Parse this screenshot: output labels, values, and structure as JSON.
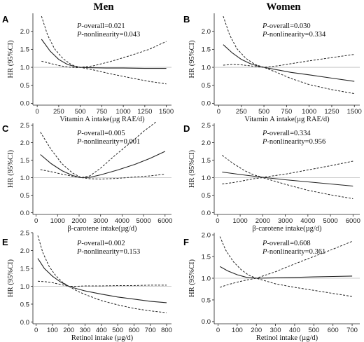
{
  "column_titles": {
    "men": "Men",
    "women": "Women"
  },
  "chart_data": [
    {
      "panel": "A",
      "type": "line",
      "xlabel": "Vitamin A intake(µg RAE/d)",
      "ylabel": "HR (95%CI)",
      "xlim": [
        -50,
        1560
      ],
      "ylim": [
        -0.05,
        2.5
      ],
      "xticks": [
        "0",
        "250",
        "500",
        "750",
        "1000",
        "1250",
        "1500"
      ],
      "xtick_values": [
        0,
        250,
        500,
        750,
        1000,
        1250,
        1500
      ],
      "yticks": [
        "0.0",
        "0.5",
        "1.0",
        "1.5",
        "2.0"
      ],
      "ytick_values": [
        0,
        0.5,
        1.0,
        1.5,
        2.0
      ],
      "annotations": [
        "P-overall=0.021",
        "P-nonlinearity=0.043"
      ],
      "reference_line": 1.0,
      "series": [
        {
          "style": "solid",
          "x": [
            50,
            150,
            250,
            350,
            450,
            500,
            600,
            800,
            1000,
            1250,
            1500
          ],
          "y": [
            1.78,
            1.45,
            1.22,
            1.08,
            1.01,
            1.0,
            0.99,
            0.98,
            0.98,
            0.97,
            0.97
          ]
        },
        {
          "style": "dashed",
          "x": [
            50,
            120,
            200,
            300,
            400,
            500,
            650,
            850,
            1100,
            1300,
            1500
          ],
          "y": [
            2.42,
            1.9,
            1.52,
            1.24,
            1.07,
            1.0,
            1.04,
            1.16,
            1.34,
            1.5,
            1.72
          ]
        },
        {
          "style": "dashed",
          "x": [
            50,
            150,
            250,
            350,
            450,
            500,
            650,
            850,
            1100,
            1300,
            1500
          ],
          "y": [
            1.17,
            1.11,
            1.05,
            1.01,
            0.99,
            1.0,
            0.93,
            0.82,
            0.7,
            0.61,
            0.54
          ]
        }
      ]
    },
    {
      "panel": "B",
      "type": "line",
      "xlabel": "Vitamin A intake(µg RAE/d)",
      "ylabel": "HR (95%CI)",
      "xlim": [
        -50,
        1560
      ],
      "ylim": [
        -0.05,
        2.5
      ],
      "xticks": [
        "0",
        "250",
        "500",
        "750",
        "1000",
        "1250",
        "1500"
      ],
      "xtick_values": [
        0,
        250,
        500,
        750,
        1000,
        1250,
        1500
      ],
      "yticks": [
        "0.0",
        "0.5",
        "1.0",
        "1.5",
        "2.0"
      ],
      "ytick_values": [
        0,
        0.5,
        1.0,
        1.5,
        2.0
      ],
      "annotations": [
        "P-overall=0.030",
        "P-nonlinearity=0.334"
      ],
      "reference_line": 1.0,
      "series": [
        {
          "style": "solid",
          "x": [
            50,
            150,
            250,
            350,
            450,
            500,
            650,
            800,
            1000,
            1250,
            1500
          ],
          "y": [
            1.63,
            1.4,
            1.22,
            1.1,
            1.02,
            1.0,
            0.93,
            0.86,
            0.79,
            0.7,
            0.61
          ]
        },
        {
          "style": "dashed",
          "x": [
            50,
            120,
            200,
            300,
            400,
            500,
            650,
            800,
            1000,
            1250,
            1500
          ],
          "y": [
            2.42,
            1.9,
            1.52,
            1.25,
            1.08,
            1.0,
            1.04,
            1.1,
            1.18,
            1.27,
            1.36
          ]
        },
        {
          "style": "dashed",
          "x": [
            50,
            150,
            250,
            350,
            450,
            500,
            650,
            800,
            1000,
            1250,
            1500
          ],
          "y": [
            1.06,
            1.08,
            1.07,
            1.04,
            1.01,
            1.0,
            0.85,
            0.69,
            0.52,
            0.38,
            0.27
          ]
        }
      ]
    },
    {
      "panel": "C",
      "type": "line",
      "xlabel": "β-carotene intake(µg/d)",
      "ylabel": "HR (95%CI)",
      "xlim": [
        -150,
        6300
      ],
      "ylim": [
        -0.05,
        2.55
      ],
      "xticks": [
        "0",
        "1000",
        "2000",
        "3000",
        "4000",
        "5000",
        "6000"
      ],
      "xtick_values": [
        0,
        1000,
        2000,
        3000,
        4000,
        5000,
        6000
      ],
      "yticks": [
        "0.0",
        "0.5",
        "1.0",
        "1.5",
        "2.0",
        "2.5"
      ],
      "ytick_values": [
        0,
        0.5,
        1.0,
        1.5,
        2.0,
        2.5
      ],
      "annotations": [
        "P-overall=0.005",
        "P-nonlinearity=0.001"
      ],
      "reference_line": 1.0,
      "series": [
        {
          "style": "solid",
          "x": [
            200,
            700,
            1200,
            1700,
            2100,
            2500,
            3000,
            3800,
            4600,
            5300,
            6000
          ],
          "y": [
            1.66,
            1.4,
            1.2,
            1.06,
            1.0,
            1.01,
            1.08,
            1.22,
            1.38,
            1.55,
            1.75
          ]
        },
        {
          "style": "dashed",
          "x": [
            200,
            700,
            1200,
            1700,
            2100,
            2500,
            3000,
            3700,
            4400,
            5000,
            5600
          ],
          "y": [
            2.3,
            1.8,
            1.4,
            1.13,
            1.0,
            1.05,
            1.27,
            1.65,
            2.0,
            2.32,
            2.6
          ]
        },
        {
          "style": "dashed",
          "x": [
            200,
            700,
            1200,
            1700,
            2100,
            2500,
            3000,
            3800,
            4600,
            5300,
            6000
          ],
          "y": [
            1.23,
            1.17,
            1.1,
            1.04,
            1.0,
            0.97,
            0.96,
            0.98,
            1.02,
            1.05,
            1.1
          ]
        }
      ]
    },
    {
      "panel": "D",
      "type": "line",
      "xlabel": "β-carotene intake(µg/d)",
      "ylabel": "HR (95%CI)",
      "xlim": [
        -150,
        6300
      ],
      "ylim": [
        -0.05,
        2.55
      ],
      "xticks": [
        "0",
        "1000",
        "2000",
        "3000",
        "4000",
        "5000",
        "6000"
      ],
      "xtick_values": [
        0,
        1000,
        2000,
        3000,
        4000,
        5000,
        6000
      ],
      "yticks": [
        "0.0",
        "0.5",
        "1.0",
        "1.5",
        "2.0",
        "2.5"
      ],
      "ytick_values": [
        0,
        0.5,
        1.0,
        1.5,
        2.0,
        2.5
      ],
      "annotations": [
        "P-overall=0.334",
        "P-nonlinearity=0.956"
      ],
      "reference_line": 1.0,
      "series": [
        {
          "style": "solid",
          "x": [
            200,
            1000,
            2000,
            3000,
            4000,
            5000,
            6000
          ],
          "y": [
            1.16,
            1.09,
            1.01,
            0.94,
            0.88,
            0.82,
            0.76
          ]
        },
        {
          "style": "dashed",
          "x": [
            200,
            700,
            1200,
            1600,
            2000,
            3000,
            4000,
            5000,
            6000
          ],
          "y": [
            1.64,
            1.4,
            1.2,
            1.08,
            1.01,
            1.1,
            1.22,
            1.34,
            1.47
          ]
        },
        {
          "style": "dashed",
          "x": [
            200,
            700,
            1200,
            1600,
            2000,
            3000,
            4000,
            5000,
            6000
          ],
          "y": [
            0.82,
            0.86,
            0.92,
            0.97,
            1.0,
            0.81,
            0.64,
            0.51,
            0.4
          ]
        }
      ]
    },
    {
      "panel": "E",
      "type": "line",
      "xlabel": "Retinol intake (µg/d)",
      "ylabel": "HR (95%CI)",
      "xlim": [
        -20,
        830
      ],
      "ylim": [
        -0.05,
        2.5
      ],
      "xticks": [
        "0",
        "100",
        "200",
        "300",
        "400",
        "500",
        "600",
        "700",
        "800"
      ],
      "xtick_values": [
        0,
        100,
        200,
        300,
        400,
        500,
        600,
        700,
        800
      ],
      "yticks": [
        "0.0",
        "0.5",
        "1.0",
        "1.5",
        "2.0",
        "2.5"
      ],
      "ytick_values": [
        0,
        0.5,
        1.0,
        1.5,
        2.0,
        2.5
      ],
      "annotations": [
        "P-overall=0.002",
        "P-nonlinearity=0.153"
      ],
      "reference_line": 1.0,
      "series": [
        {
          "style": "solid",
          "x": [
            10,
            50,
            100,
            150,
            200,
            250,
            300,
            400,
            500,
            600,
            700,
            800
          ],
          "y": [
            1.78,
            1.5,
            1.28,
            1.12,
            1.0,
            0.93,
            0.87,
            0.78,
            0.7,
            0.64,
            0.58,
            0.54
          ]
        },
        {
          "style": "dashed",
          "x": [
            10,
            40,
            80,
            120,
            160,
            200,
            250,
            300,
            400,
            500,
            600,
            700,
            800
          ],
          "y": [
            2.42,
            1.95,
            1.55,
            1.3,
            1.12,
            1.0,
            1.0,
            1.01,
            1.01,
            1.02,
            1.02,
            1.03,
            1.03
          ]
        },
        {
          "style": "dashed",
          "x": [
            10,
            50,
            100,
            150,
            200,
            250,
            300,
            400,
            500,
            600,
            700,
            800
          ],
          "y": [
            1.14,
            1.13,
            1.1,
            1.05,
            1.0,
            0.87,
            0.77,
            0.6,
            0.48,
            0.38,
            0.31,
            0.26
          ]
        }
      ]
    },
    {
      "panel": "F",
      "type": "line",
      "xlabel": "Retinol intake (µg/d)",
      "ylabel": "HR (95%CI)",
      "xlim": [
        -20,
        740
      ],
      "ylim": [
        -0.05,
        2.05
      ],
      "xticks": [
        "0",
        "100",
        "200",
        "300",
        "400",
        "500",
        "600",
        "700"
      ],
      "xtick_values": [
        0,
        100,
        200,
        300,
        400,
        500,
        600,
        700
      ],
      "yticks": [
        "0.0",
        "0.5",
        "1.0",
        "1.5",
        "2.0"
      ],
      "ytick_values": [
        0,
        0.5,
        1.0,
        1.5,
        2.0
      ],
      "annotations": [
        "P-overall=0.608",
        "P-nonlinearity=0.361"
      ],
      "reference_line": 1.0,
      "series": [
        {
          "style": "solid",
          "x": [
            10,
            50,
            100,
            150,
            200,
            300,
            400,
            500,
            600,
            700
          ],
          "y": [
            1.27,
            1.17,
            1.08,
            1.02,
            1.0,
            1.01,
            1.02,
            1.03,
            1.04,
            1.05
          ]
        },
        {
          "style": "dashed",
          "x": [
            10,
            40,
            80,
            120,
            160,
            200,
            300,
            400,
            500,
            600,
            700
          ],
          "y": [
            1.96,
            1.65,
            1.38,
            1.2,
            1.07,
            1.0,
            1.15,
            1.33,
            1.5,
            1.67,
            1.85
          ]
        },
        {
          "style": "dashed",
          "x": [
            10,
            50,
            100,
            150,
            200,
            300,
            400,
            500,
            600,
            700
          ],
          "y": [
            0.79,
            0.85,
            0.91,
            0.96,
            1.0,
            0.87,
            0.79,
            0.72,
            0.65,
            0.58
          ]
        }
      ]
    }
  ]
}
